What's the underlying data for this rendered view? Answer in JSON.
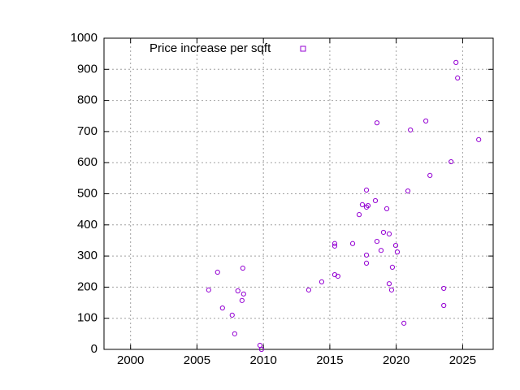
{
  "chart_data": {
    "type": "scatter",
    "series": [
      {
        "name": "Price increase per sqft",
        "color": "#9400d3",
        "x": [
          2005.88,
          2006.55,
          2006.92,
          2007.65,
          2007.84,
          2008.08,
          2008.39,
          2008.51,
          2008.45,
          2009.74,
          2009.86,
          2013.41,
          2014.39,
          2015.37,
          2015.37,
          2015.37,
          2015.61,
          2016.72,
          2017.21,
          2017.45,
          2017.76,
          2017.76,
          2017.88,
          2017.76,
          2017.76,
          2018.43,
          2018.55,
          2018.55,
          2018.86,
          2019.04,
          2019.29,
          2019.47,
          2019.47,
          2019.65,
          2019.71,
          2019.96,
          2020.08,
          2020.58,
          2020.88,
          2021.07,
          2022.23,
          2022.54,
          2023.58,
          2023.58,
          2024.13,
          2024.5,
          2024.62,
          2026.21
        ],
        "values": [
          191,
          248,
          133,
          110,
          50,
          188,
          157,
          178,
          261,
          13,
          0,
          191,
          217,
          340,
          332,
          240,
          235,
          340,
          433,
          465,
          512,
          457,
          462,
          303,
          277,
          478,
          728,
          347,
          318,
          376,
          452,
          371,
          211,
          191,
          264,
          334,
          313,
          84,
          509,
          705,
          734,
          559,
          196,
          141,
          603,
          922,
          872,
          674
        ]
      }
    ],
    "xlim": [
      1998,
      2027.3
    ],
    "ylim": [
      0,
      1000
    ],
    "xticks": [
      2000,
      2005,
      2010,
      2015,
      2020,
      2025
    ],
    "yticks": [
      0,
      100,
      200,
      300,
      400,
      500,
      600,
      700,
      800,
      900,
      1000
    ],
    "grid": true,
    "legend": "top left"
  }
}
